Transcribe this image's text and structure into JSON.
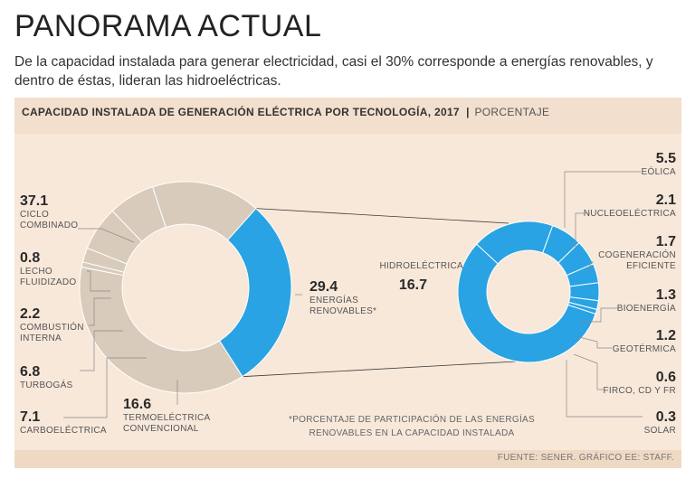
{
  "header": {
    "title": "PANORAMA ACTUAL",
    "subtitle": "De la capacidad instalada para generar electricidad, casi el 30% corresponde a energías renovables, y dentro de éstas, lideran las hidroeléctricas."
  },
  "panel": {
    "title": "CAPACIDAD INSTALADA DE GENERACIÓN ELÉCTRICA POR TECNOLOGÍA, 2017",
    "unit": "PORCENTAJE",
    "note_line1": "*PORCENTAJE DE PARTICIPACIÓN DE LAS ENERGÍAS",
    "note_line2": "RENOVABLES EN LA CAPACIDAD INSTALADA",
    "source": "FUENTE: SENER. GRÁFICO EE: STAFF."
  },
  "colors": {
    "renewable": "#29a3e3",
    "conventional": "#d8cbbb",
    "background": "#f7e8da"
  },
  "chart_data": [
    {
      "type": "pie",
      "variant": "donut",
      "categories": [
        "ENERGÍAS RENOVABLES*",
        "CICLO COMBINADO",
        "LECHO FLUIDIZADO",
        "COMBUSTIÓN INTERNA",
        "TURBOGÁS",
        "CARBOELÉCTRICA",
        "TERMOELÉCTRICA CONVENCIONAL"
      ],
      "values": [
        29.4,
        37.1,
        0.8,
        2.2,
        6.8,
        7.1,
        16.6
      ],
      "labels": [
        [
          "ENERGÍAS",
          "RENOVABLES*"
        ],
        [
          "CICLO",
          "COMBINADO"
        ],
        [
          "LECHO",
          "FLUIDIZADO"
        ],
        [
          "COMBUSTIÓN",
          "INTERNA"
        ],
        [
          "TURBOGÁS"
        ],
        [
          "CARBOELÉCTRICA"
        ],
        [
          "TERMOELÉCTRICA",
          "CONVENCIONAL"
        ]
      ],
      "value_labels": [
        "29.4",
        "37.1",
        "0.8",
        "2.2",
        "6.8",
        "7.1",
        "16.6"
      ]
    },
    {
      "type": "pie",
      "variant": "donut",
      "categories": [
        "HIDROELÉCTRICA",
        "EÓLICA",
        "NUCLEOELÉCTRICA",
        "COGENERACIÓN EFICIENTE",
        "BIOENERGÍA",
        "GEOTÉRMICA",
        "FIRCO, CD Y FR",
        "SOLAR"
      ],
      "values": [
        16.7,
        5.5,
        2.1,
        1.7,
        1.3,
        1.2,
        0.6,
        0.3
      ],
      "labels": [
        [
          "HIDROELÉCTRICA"
        ],
        [
          "EÓLICA"
        ],
        [
          "NUCLEOELÉCTRICA"
        ],
        [
          "COGENERACIÓN",
          "EFICIENTE"
        ],
        [
          "BIOENERGÍA"
        ],
        [
          "GEOTÉRMICA"
        ],
        [
          "FIRCO, CD Y FR"
        ],
        [
          "SOLAR"
        ]
      ],
      "value_labels": [
        "16.7",
        "5.5",
        "2.1",
        "1.7",
        "1.3",
        "1.2",
        "0.6",
        "0.3"
      ]
    }
  ]
}
